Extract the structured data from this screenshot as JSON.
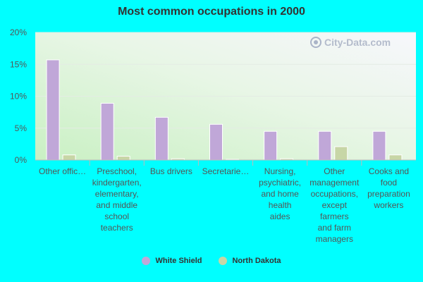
{
  "chart_data": {
    "type": "bar",
    "title": "Most common occupations in 2000",
    "categories": [
      "Other offic…",
      "Preschool,\nkindergarten,\nelementary,\nand middle\nschool\nteachers",
      "Bus drivers",
      "Secretarie…",
      "Nursing,\npsychiatric,\nand home\nhealth\naides",
      "Other\nmanagement\noccupations,\nexcept\nfarmers\nand farm\nmanagers",
      "Cooks and\nfood\npreparation\nworkers"
    ],
    "series": [
      {
        "name": "White Shield",
        "color": "#c0a7d8",
        "values": [
          15.7,
          8.9,
          6.7,
          5.6,
          4.5,
          4.5,
          4.5
        ]
      },
      {
        "name": "North Dakota",
        "color": "#c7d6a6",
        "values": [
          0.8,
          0.6,
          0.2,
          0.1,
          0.2,
          2.1,
          0.8
        ]
      }
    ],
    "yticks": [
      "0%",
      "5%",
      "10%",
      "15%",
      "20%"
    ],
    "ylim": [
      0,
      20
    ],
    "grid": true,
    "legend_position": "bottom-center"
  },
  "watermark": "City-Data.com"
}
